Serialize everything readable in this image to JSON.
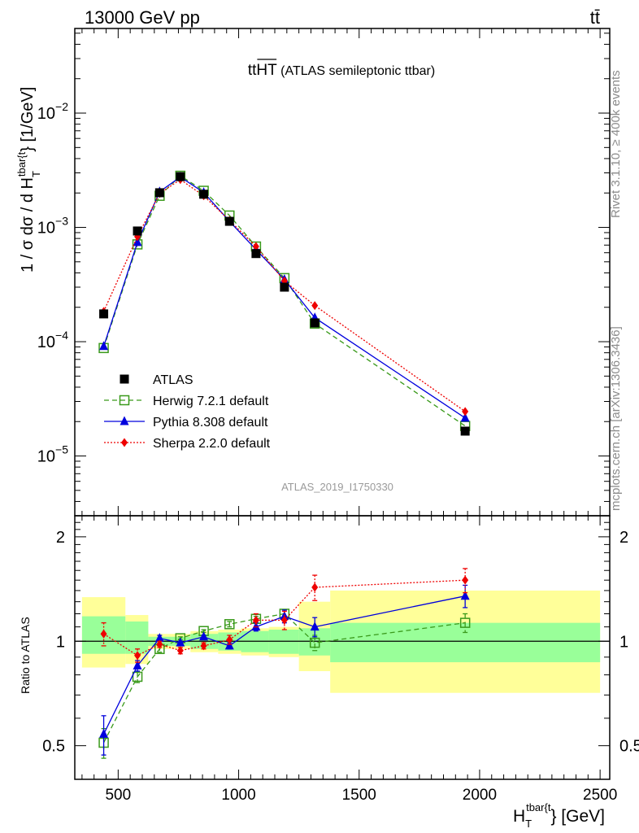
{
  "header": {
    "left": "13000 GeV pp",
    "right": "tt̄",
    "title_main": "tt",
    "title_over": "HT",
    "title_sub": " (ATLAS semileptonic ttbar)",
    "watermark": "ATLAS_2019_I1750330",
    "side_top": "Rivet 3.1.10, ≥ 400k events",
    "side_bottom": "mcplots.cern.ch [arXiv:1306.3436]"
  },
  "chart_data": [
    {
      "type": "scatter",
      "name": "main",
      "ylabel_pre": "1 / σ dσ / d H",
      "ylabel_sup": "tbar{t",
      "ylabel_sub": "T",
      "ylabel_post": "} [1/GeV]",
      "xlim": [
        320,
        2540
      ],
      "ylim": [
        3e-06,
        0.055
      ],
      "yscale": "log",
      "yticks": [
        {
          "value": 1e-05,
          "base": "10",
          "exp": "−5"
        },
        {
          "value": 0.0001,
          "base": "10",
          "exp": "−4"
        },
        {
          "value": 0.001,
          "base": "10",
          "exp": "−3"
        },
        {
          "value": 0.01,
          "base": "10",
          "exp": "−2"
        }
      ],
      "legend_position": "lower-left",
      "series": [
        {
          "name": "ATLAS",
          "marker": "square-filled",
          "color": "#000000",
          "x": [
            440,
            580,
            672,
            758,
            855,
            962,
            1072,
            1190,
            1316,
            1940
          ],
          "y": [
            0.000175,
            0.00093,
            0.00201,
            0.00278,
            0.00195,
            0.00113,
            0.00059,
            0.0003,
            0.000146,
            1.65e-05
          ]
        },
        {
          "name": "Herwig 7.2.1 default",
          "marker": "square-open",
          "line": "dashed",
          "color": "#3a9a1b",
          "x": [
            440,
            580,
            672,
            758,
            855,
            962,
            1072,
            1190,
            1316,
            1940
          ],
          "y": [
            8.8e-05,
            0.00071,
            0.00189,
            0.00283,
            0.00209,
            0.00127,
            0.00068,
            0.00036,
            0.000144,
            1.83e-05
          ]
        },
        {
          "name": "Pythia 8.308 default",
          "marker": "triangle-filled",
          "line": "solid",
          "color": "#0000dd",
          "x": [
            440,
            580,
            672,
            758,
            855,
            962,
            1072,
            1190,
            1316,
            1940
          ],
          "y": [
            9.1e-05,
            0.00074,
            0.00205,
            0.00276,
            0.00202,
            0.00113,
            0.00064,
            0.00035,
            0.000162,
            2.15e-05
          ]
        },
        {
          "name": "Sherpa 2.2.0 default",
          "marker": "diamond-filled",
          "line": "dotted",
          "color": "#ee0000",
          "x": [
            440,
            580,
            672,
            758,
            855,
            962,
            1072,
            1190,
            1316,
            1940
          ],
          "y": [
            0.000184,
            0.00083,
            0.00198,
            0.00262,
            0.00189,
            0.00115,
            0.00068,
            0.00034,
            0.000207,
            2.45e-05
          ]
        }
      ]
    },
    {
      "type": "scatter",
      "name": "ratio",
      "ylabel": "Ratio to ATLAS",
      "xlabel_pre": "H",
      "xlabel_sup": "tbar{t",
      "xlabel_sub": "T",
      "xlabel_post": "} [GeV]",
      "xlim": [
        320,
        2540
      ],
      "ylim": [
        0.4,
        2.3
      ],
      "xticks": [
        {
          "value": 500,
          "label": "500"
        },
        {
          "value": 1000,
          "label": "1000"
        },
        {
          "value": 1500,
          "label": "1500"
        },
        {
          "value": 2000,
          "label": "2000"
        },
        {
          "value": 2500,
          "label": "2500"
        }
      ],
      "yticks": [
        {
          "value": 0.5,
          "label": "0.5"
        },
        {
          "value": 1,
          "label": "1"
        },
        {
          "value": 2,
          "label": "2"
        }
      ],
      "bands": {
        "edges": [
          350,
          530,
          625,
          720,
          800,
          915,
          1010,
          1125,
          1250,
          1380,
          2500
        ],
        "green_lo": [
          0.92,
          0.92,
          0.97,
          0.97,
          0.95,
          0.94,
          0.93,
          0.92,
          0.91,
          0.87
        ],
        "green_hi": [
          1.18,
          1.14,
          1.03,
          1.03,
          1.05,
          1.06,
          1.07,
          1.08,
          1.09,
          1.13
        ],
        "yellow_lo": [
          0.84,
          0.86,
          0.95,
          0.95,
          0.93,
          0.92,
          0.91,
          0.9,
          0.82,
          0.71
        ],
        "yellow_hi": [
          1.34,
          1.19,
          1.05,
          1.05,
          1.07,
          1.08,
          1.09,
          1.1,
          1.3,
          1.4
        ]
      },
      "series": [
        {
          "name": "Herwig 7.2.1 default",
          "marker": "square-open",
          "line": "dashed",
          "color": "#3a9a1b",
          "x": [
            440,
            580,
            672,
            758,
            855,
            962,
            1072,
            1190,
            1316,
            1940
          ],
          "y": [
            0.51,
            0.79,
            0.95,
            1.02,
            1.07,
            1.12,
            1.16,
            1.2,
            0.99,
            1.13
          ],
          "err": [
            0.05,
            0.03,
            0.02,
            0.01,
            0.01,
            0.02,
            0.02,
            0.03,
            0.05,
            0.07
          ]
        },
        {
          "name": "Pythia 8.308 default",
          "marker": "triangle-filled",
          "line": "solid",
          "color": "#0000dd",
          "x": [
            440,
            580,
            672,
            758,
            855,
            962,
            1072,
            1190,
            1316,
            1940
          ],
          "y": [
            0.54,
            0.85,
            1.02,
            0.99,
            1.03,
            0.97,
            1.1,
            1.18,
            1.1,
            1.35
          ],
          "err": [
            0.07,
            0.03,
            0.02,
            0.01,
            0.01,
            0.02,
            0.03,
            0.05,
            0.07,
            0.1
          ]
        },
        {
          "name": "Sherpa 2.2.0 default",
          "marker": "diamond-filled",
          "line": "dotted",
          "color": "#ee0000",
          "x": [
            440,
            580,
            672,
            758,
            855,
            962,
            1072,
            1190,
            1316,
            1940
          ],
          "y": [
            1.05,
            0.91,
            0.98,
            0.94,
            0.97,
            1.01,
            1.15,
            1.15,
            1.43,
            1.5
          ],
          "err": [
            0.08,
            0.04,
            0.02,
            0.02,
            0.02,
            0.03,
            0.05,
            0.07,
            0.12,
            0.12
          ]
        }
      ]
    }
  ]
}
